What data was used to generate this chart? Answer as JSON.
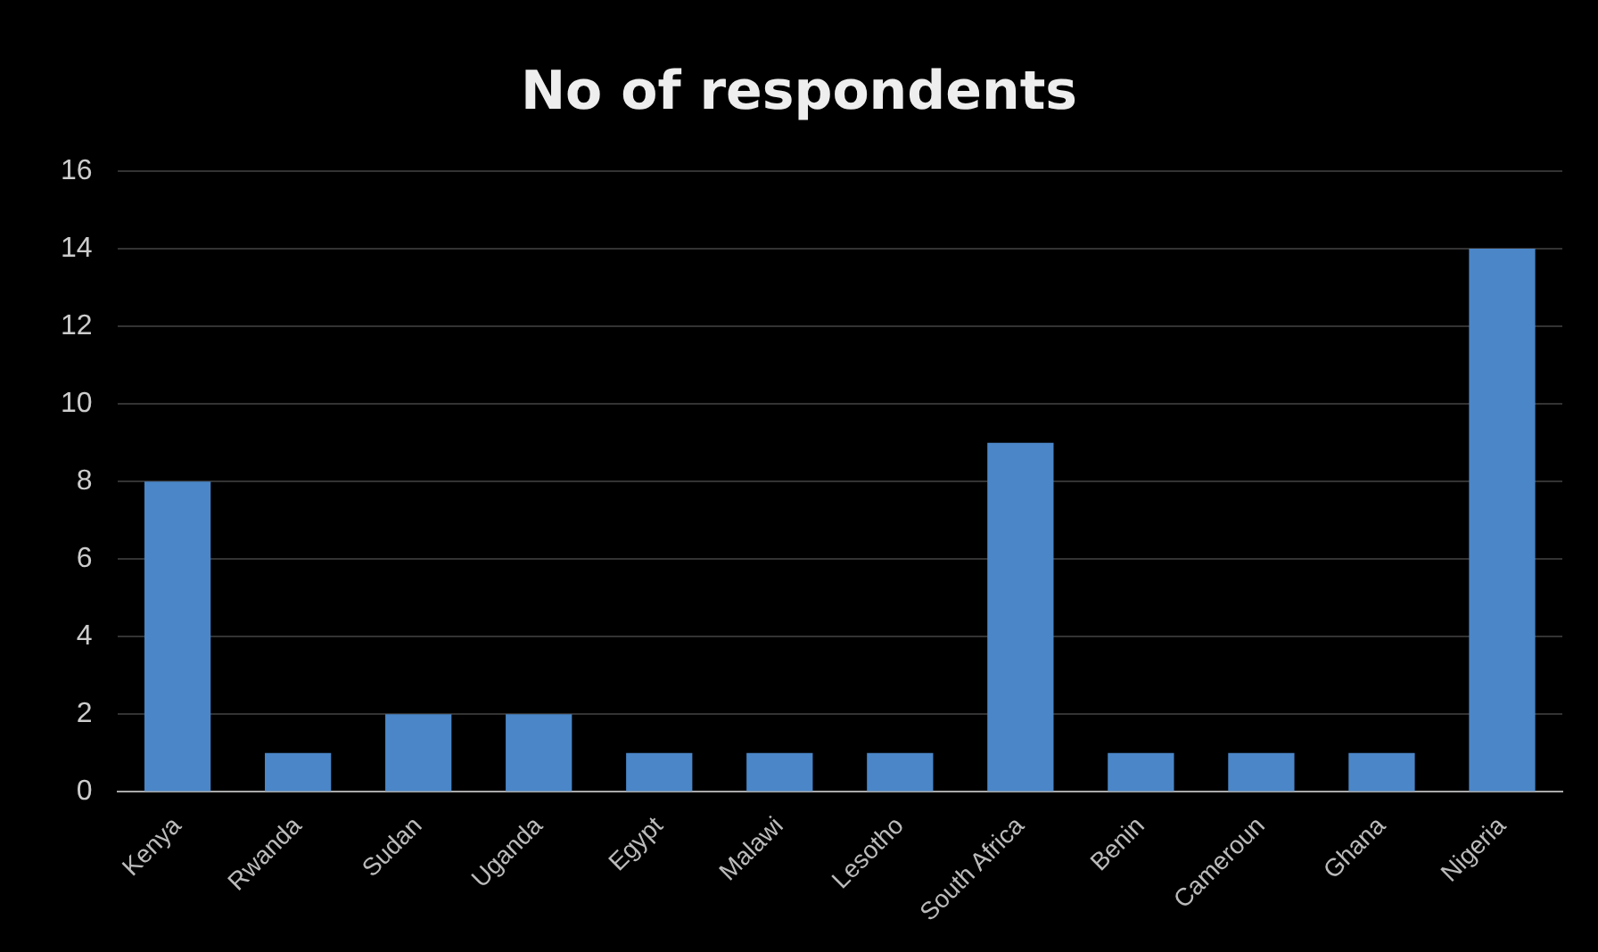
{
  "chart_data": {
    "type": "bar",
    "title": "No of respondents",
    "categories": [
      "Kenya",
      "Rwanda",
      "Sudan",
      "Uganda",
      "Egypt",
      "Malawi",
      "Lesotho",
      "South Africa",
      "Benin",
      "Cameroun",
      "Ghana",
      "Nigeria"
    ],
    "values": [
      8,
      1,
      2,
      2,
      1,
      1,
      1,
      9,
      1,
      1,
      1,
      14
    ],
    "color": "#4a86c8",
    "ylim": [
      0,
      16
    ],
    "yticks": [
      0,
      2,
      4,
      6,
      8,
      10,
      12,
      14,
      16
    ],
    "grid": "y"
  }
}
